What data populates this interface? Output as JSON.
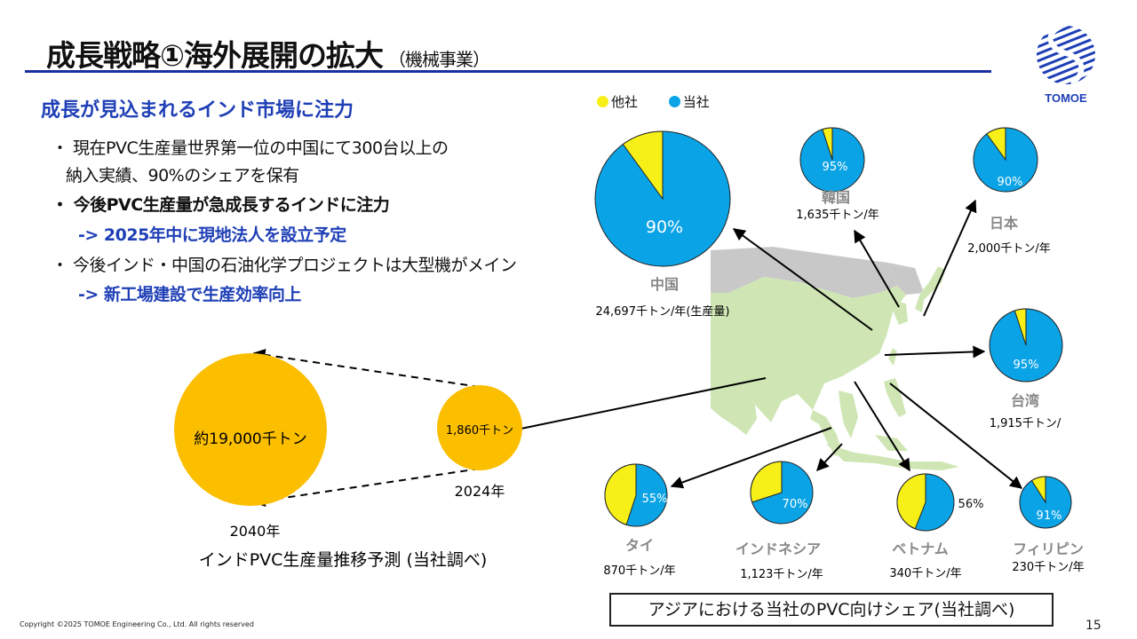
{
  "title": {
    "main": "成長戦略①海外展開の拡大",
    "sub": "（機械事業）"
  },
  "logo": {
    "text": "TOMOE"
  },
  "heading": "成長が見込まれるインド市場に注力",
  "bullets": [
    {
      "line1": "・ 現在PVC生産量世界第一位の中国にて300台以上の",
      "line2": "納入実績、90%のシェアを保有"
    },
    {
      "line1": "・ 今後PVC生産量が急成長するインドに注力",
      "sub": "-> 2025年中に現地法人を設立予定"
    },
    {
      "line1": "・ 今後インド・中国の石油化学プロジェクトは大型機がメイン",
      "sub": "-> 新工場建設で生産効率向上"
    }
  ],
  "legend": {
    "others": "他社",
    "ours": "当社"
  },
  "colors": {
    "ours": "#0aa3e6",
    "others": "#f7f018",
    "india": "#fbbf00",
    "accent": "#1f3fb6",
    "map_land": "#cfe6b4",
    "map_grey": "#c8c8c8"
  },
  "india_forecast": {
    "y2040": {
      "value": "約19,000千トン",
      "year": "2040年"
    },
    "y2024": {
      "value": "1,860千トン",
      "year": "2024年"
    },
    "title": "インドPVC生産量推移予測 (当社調べ)"
  },
  "countries": [
    {
      "id": "china",
      "name": "中国",
      "share": 90,
      "share_label": "90%",
      "volume": "24,697千トン/年(生産量)"
    },
    {
      "id": "korea",
      "name": "韓国",
      "share": 95,
      "share_label": "95%",
      "volume": "1,635千トン/年"
    },
    {
      "id": "japan",
      "name": "日本",
      "share": 90,
      "share_label": "90%",
      "volume": "2,000千トン/年"
    },
    {
      "id": "taiwan",
      "name": "台湾",
      "share": 95,
      "share_label": "95%",
      "volume": "1,915千トン/"
    },
    {
      "id": "thailand",
      "name": "タイ",
      "share": 55,
      "share_label": "55%",
      "volume": "870千トン/年"
    },
    {
      "id": "indonesia",
      "name": "インドネシア",
      "share": 70,
      "share_label": "70%",
      "volume": "1,123千トン/年"
    },
    {
      "id": "vietnam",
      "name": "ベトナム",
      "share": 56,
      "share_label": "56%",
      "volume": "340千トン/年"
    },
    {
      "id": "philippines",
      "name": "フィリピン",
      "share": 91,
      "share_label": "91%",
      "volume": "230千トン/年"
    }
  ],
  "caption": "アジアにおける当社のPVC向けシェア(当社調べ)",
  "copyright": "Copyright ©2025 TOMOE Engineering Co., Ltd. All rights reserved",
  "page_number": "15"
}
